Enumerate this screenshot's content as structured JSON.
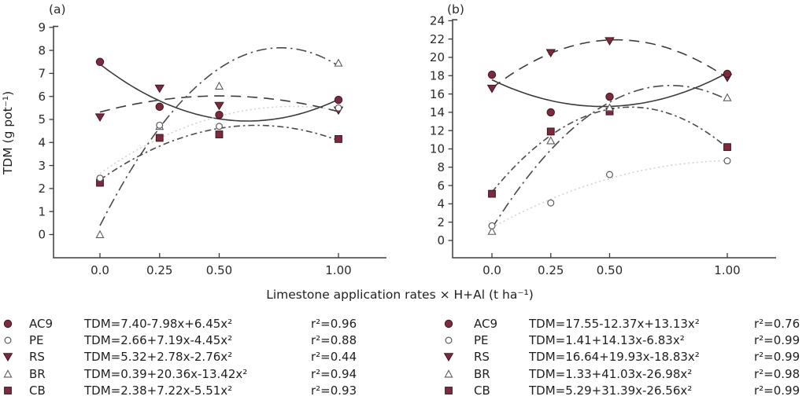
{
  "figure": {
    "xlabel": "Limestone application rates × H+Al (t ha⁻¹)",
    "ylabel": "TDM (g pot⁻¹)"
  },
  "colors": {
    "marker_fill": "#7c2b3e",
    "marker_stroke": "#3f1520",
    "open_marker_stroke": "#5a5a5a",
    "axis": "#3b3b3b",
    "text": "#2b2b2b",
    "dark_line": "#3b3b3b",
    "mid_line": "#4a4a4a",
    "dotted_line": "#d4d2cf"
  },
  "chart_data": [
    {
      "type": "scatter",
      "panel_label": "(a)",
      "xlabel_shared": "Limestone application rates × H+Al (t ha⁻¹)",
      "ylabel": "TDM (g pot⁻¹)",
      "ylim": [
        0,
        9
      ],
      "y_tick_step": 1,
      "xlim": [
        0,
        1
      ],
      "x_ticks": [
        0,
        0.25,
        0.5,
        1
      ],
      "x_tick_labels": [
        "0.0",
        "0.25",
        "0.50",
        "1.00"
      ],
      "grid": false,
      "legend_position": "below",
      "series": [
        {
          "name": "AC9",
          "marker": "circle-filled",
          "line": "solid",
          "points": [
            [
              0,
              7.5
            ],
            [
              0.25,
              5.55
            ],
            [
              0.5,
              5.2
            ],
            [
              1,
              5.85
            ]
          ],
          "coef": [
            7.4,
            -7.98,
            6.45
          ],
          "equation": "TDM=7.40-7.98x+6.45x²",
          "r2": "r²=0.96"
        },
        {
          "name": "PE",
          "marker": "circle-open",
          "line": "dotted",
          "points": [
            [
              0,
              2.45
            ],
            [
              0.25,
              4.75
            ],
            [
              0.5,
              4.7
            ],
            [
              1,
              5.5
            ]
          ],
          "coef": [
            2.66,
            7.19,
            -4.45
          ],
          "equation": "TDM=2.66+7.19x-4.45x²",
          "r2": "r²=0.88"
        },
        {
          "name": "RS",
          "marker": "triangle-down-filled",
          "line": "long-dash",
          "points": [
            [
              0,
              5.1
            ],
            [
              0.25,
              6.35
            ],
            [
              0.5,
              5.6
            ],
            [
              1,
              5.4
            ]
          ],
          "coef": [
            5.32,
            2.78,
            -2.76
          ],
          "equation": "TDM=5.32+2.78x-2.76x²",
          "r2": "r²=0.44"
        },
        {
          "name": "BR",
          "marker": "triangle-up-open",
          "line": "dash-dot",
          "points": [
            [
              0,
              0.0
            ],
            [
              0.25,
              4.7
            ],
            [
              0.5,
              6.45
            ],
            [
              1,
              7.45
            ]
          ],
          "coef": [
            0.39,
            20.36,
            -13.42
          ],
          "equation": "TDM=0.39+20.36x-13.42x²",
          "r2": "r²=0.94"
        },
        {
          "name": "CB",
          "marker": "square-filled",
          "line": "dash-dot-short",
          "points": [
            [
              0,
              2.25
            ],
            [
              0.25,
              4.2
            ],
            [
              0.5,
              4.35
            ],
            [
              1,
              4.15
            ]
          ],
          "coef": [
            2.38,
            7.22,
            -5.51
          ],
          "equation": "TDM=2.38+7.22x-5.51x²",
          "r2": "r²=0.93"
        }
      ]
    },
    {
      "type": "scatter",
      "panel_label": "(b)",
      "xlabel_shared": "Limestone application rates × H+Al (t ha⁻¹)",
      "ylabel": "",
      "ylim": [
        0,
        24
      ],
      "y_tick_step": 2,
      "xlim": [
        0,
        1
      ],
      "x_ticks": [
        0,
        0.25,
        0.5,
        1
      ],
      "x_tick_labels": [
        "0.0",
        "0.25",
        "0.50",
        "1.00"
      ],
      "grid": false,
      "legend_position": "below",
      "series": [
        {
          "name": "AC9",
          "marker": "circle-filled",
          "line": "solid",
          "points": [
            [
              0,
              18.1
            ],
            [
              0.25,
              14.0
            ],
            [
              0.5,
              15.7
            ],
            [
              1,
              18.2
            ]
          ],
          "coef": [
            17.55,
            -12.37,
            13.13
          ],
          "equation": "TDM=17.55-12.37x+13.13x²",
          "r2": "r²=0.76"
        },
        {
          "name": "PE",
          "marker": "circle-open",
          "line": "dotted",
          "points": [
            [
              0,
              1.6
            ],
            [
              0.25,
              4.1
            ],
            [
              0.5,
              7.2
            ],
            [
              1,
              8.7
            ]
          ],
          "coef": [
            1.41,
            14.13,
            -6.83
          ],
          "equation": "TDM=1.41+14.13x-6.83x²",
          "r2": "r²=0.99"
        },
        {
          "name": "RS",
          "marker": "triangle-down-filled",
          "line": "long-dash",
          "points": [
            [
              0,
              16.6
            ],
            [
              0.25,
              20.5
            ],
            [
              0.5,
              21.8
            ],
            [
              1,
              17.8
            ]
          ],
          "coef": [
            16.64,
            19.93,
            -18.83
          ],
          "equation": "TDM=16.64+19.93x-18.83x²",
          "r2": "r²=0.99"
        },
        {
          "name": "BR",
          "marker": "triangle-up-open",
          "line": "dash-dot",
          "points": [
            [
              0,
              1.0
            ],
            [
              0.25,
              10.9
            ],
            [
              0.5,
              14.5
            ],
            [
              1,
              15.6
            ]
          ],
          "coef": [
            1.33,
            41.03,
            -26.98
          ],
          "equation": "TDM=1.33+41.03x-26.98x²",
          "r2": "r²=0.98"
        },
        {
          "name": "CB",
          "marker": "square-filled",
          "line": "dash-dot-short",
          "points": [
            [
              0,
              5.1
            ],
            [
              0.25,
              11.9
            ],
            [
              0.5,
              14.1
            ],
            [
              1,
              10.2
            ]
          ],
          "coef": [
            5.29,
            31.39,
            -26.56
          ],
          "equation": "TDM=5.29+31.39x-26.56x²",
          "r2": "r²=0.99"
        }
      ]
    }
  ]
}
